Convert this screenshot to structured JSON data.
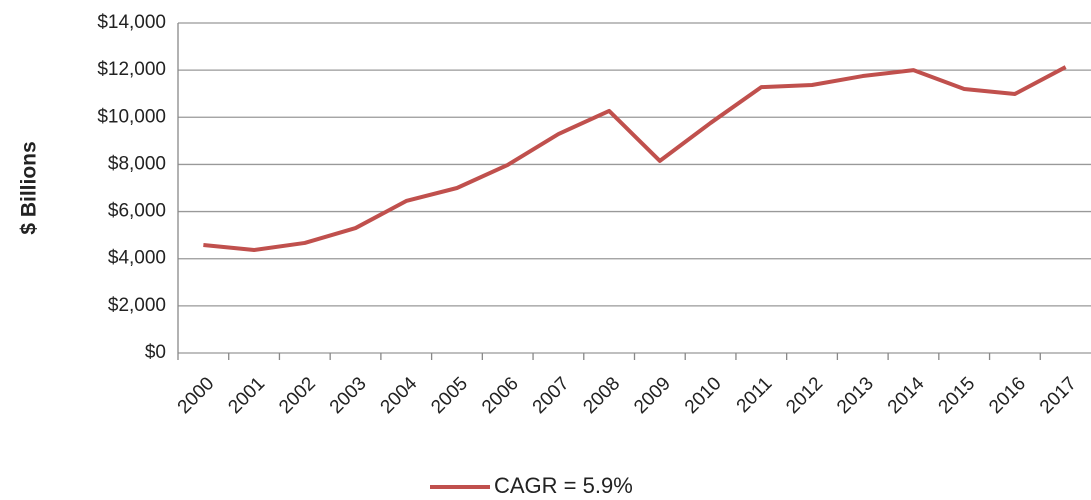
{
  "chart_data": {
    "type": "line",
    "y_label": "$ Billions",
    "categories": [
      "2000",
      "2001",
      "2002",
      "2003",
      "2004",
      "2005",
      "2006",
      "2007",
      "2008",
      "2009",
      "2010",
      "2011",
      "2012",
      "2013",
      "2014",
      "2015",
      "2016",
      "2017"
    ],
    "series": [
      {
        "name": "CAGR = 5.9%",
        "color": "#c0504d",
        "values": [
          4580,
          4370,
          4670,
          5300,
          6450,
          7000,
          7980,
          9290,
          10270,
          8150,
          9760,
          11280,
          11370,
          11750,
          12000,
          11200,
          10990,
          12130
        ]
      }
    ],
    "ylim": [
      0,
      14000
    ],
    "yticks": [
      {
        "value": 0,
        "label": "$0"
      },
      {
        "value": 2000,
        "label": "$2,000"
      },
      {
        "value": 4000,
        "label": "$4,000"
      },
      {
        "value": 6000,
        "label": "$6,000"
      },
      {
        "value": 8000,
        "label": "$8,000"
      },
      {
        "value": 10000,
        "label": "$10,000"
      },
      {
        "value": 12000,
        "label": "$12,000"
      },
      {
        "value": 14000,
        "label": "$14,000"
      }
    ],
    "grid": true,
    "legend": "bottom"
  }
}
